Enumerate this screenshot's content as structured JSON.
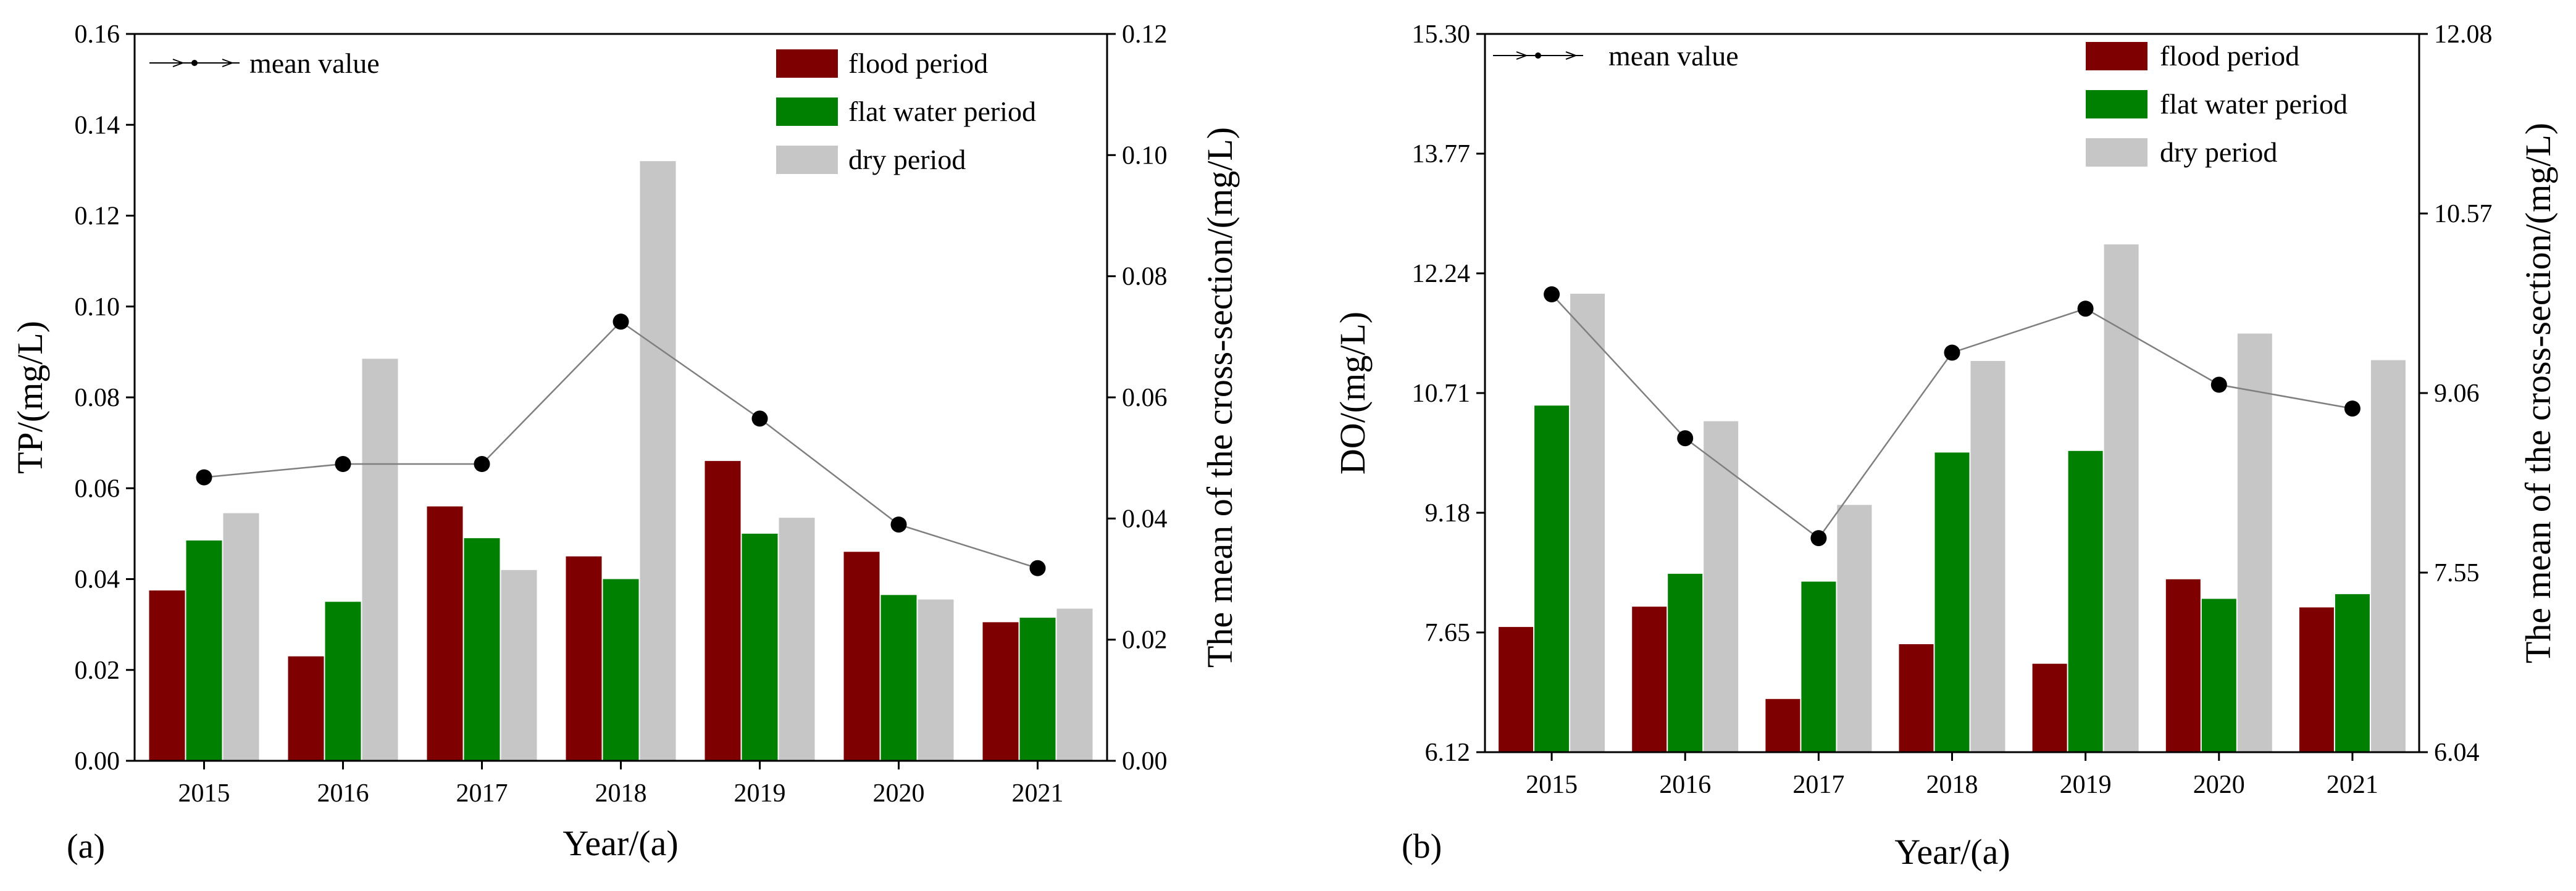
{
  "chart_data": [
    {
      "type": "bar",
      "panel_label": "(a)",
      "categories": [
        "2015",
        "2016",
        "2017",
        "2018",
        "2019",
        "2020",
        "2021"
      ],
      "xlabel": "Year/(a)",
      "ylabel": "TP/(mg/L)",
      "y2label": "The mean of the cross-section/(mg/L)",
      "ylim": [
        0,
        0.16
      ],
      "yticks": [
        "0.00",
        "0.02",
        "0.04",
        "0.06",
        "0.08",
        "0.10",
        "0.12",
        "0.14",
        "0.16"
      ],
      "y2lim": [
        0,
        0.12
      ],
      "y2ticks": [
        "0.00",
        "0.02",
        "0.04",
        "0.06",
        "0.08",
        "0.10",
        "0.12"
      ],
      "series": [
        {
          "name": "flood period",
          "color": "#7f0000",
          "values": [
            0.0375,
            0.023,
            0.056,
            0.045,
            0.066,
            0.046,
            0.0305
          ]
        },
        {
          "name": "flat water period",
          "color": "#008000",
          "values": [
            0.0485,
            0.035,
            0.049,
            0.04,
            0.05,
            0.0365,
            0.0315
          ]
        },
        {
          "name": "dry period",
          "color": "#c6c6c6",
          "values": [
            0.0545,
            0.0885,
            0.042,
            0.132,
            0.0535,
            0.0355,
            0.0335
          ]
        }
      ],
      "mean_series": {
        "name": "mean value",
        "axis": "right",
        "values": [
          0.0468,
          0.049,
          0.049,
          0.0725,
          0.0565,
          0.039,
          0.0318
        ]
      },
      "legend_position": "top-right"
    },
    {
      "type": "bar",
      "panel_label": "(b)",
      "categories": [
        "2015",
        "2016",
        "2017",
        "2018",
        "2019",
        "2020",
        "2021"
      ],
      "xlabel": "Year/(a)",
      "ylabel": "DO/(mg/L)",
      "y2label": "The mean of the cross-section/(mg/L)",
      "ylim": [
        6.12,
        15.3
      ],
      "yticks": [
        "6.12",
        "7.65",
        "9.18",
        "10.71",
        "12.24",
        "13.77",
        "15.30"
      ],
      "y2lim": [
        6.04,
        12.08
      ],
      "y2ticks": [
        "6.04",
        "7.55",
        "9.06",
        "10.57",
        "12.08"
      ],
      "series": [
        {
          "name": "flood period",
          "color": "#7f0000",
          "values": [
            7.72,
            7.98,
            6.8,
            7.5,
            7.25,
            8.33,
            7.97
          ]
        },
        {
          "name": "flat water period",
          "color": "#008000",
          "values": [
            10.55,
            8.4,
            8.3,
            9.95,
            9.97,
            8.08,
            8.14
          ]
        },
        {
          "name": "dry period",
          "color": "#c6c6c6",
          "values": [
            11.98,
            10.35,
            9.28,
            11.12,
            12.61,
            11.47,
            11.13
          ]
        }
      ],
      "mean_series": {
        "name": "mean value",
        "axis": "right",
        "values": [
          9.89,
          8.68,
          7.84,
          9.4,
          9.77,
          9.13,
          8.93
        ]
      },
      "legend_position": "top-right"
    }
  ]
}
